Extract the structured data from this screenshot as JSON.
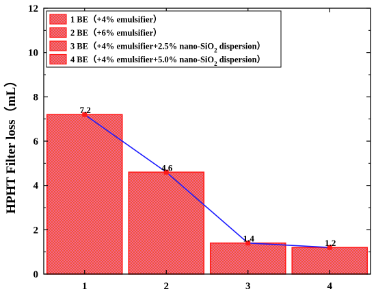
{
  "chart_data": {
    "type": "bar",
    "categories": [
      "1",
      "2",
      "3",
      "4"
    ],
    "values": [
      7.2,
      4.6,
      1.4,
      1.2
    ],
    "value_labels": [
      "7.2",
      "4.6",
      "1.4",
      "1.2"
    ],
    "ylabel": "HPHT Filter loss（mL）",
    "ylim": [
      0,
      12
    ],
    "yticks": [
      "0",
      "2",
      "4",
      "6",
      "8",
      "10",
      "12"
    ],
    "grid": false,
    "overlay_line": true,
    "legend_position": "top-left",
    "legend": [
      {
        "prefix": "1 BE（+4% emulsifier）",
        "sub": "",
        "suffix": ""
      },
      {
        "prefix": "2 BE（+6% emulsifier）",
        "sub": "",
        "suffix": ""
      },
      {
        "prefix": "3 BE（+4% emulsifier+2.5% nano-SiO",
        "sub": "2",
        "suffix": " dispersion）"
      },
      {
        "prefix": "4 BE（+4% emulsifier+5.0% nano-SiO",
        "sub": "2",
        "suffix": " dispersion）"
      }
    ],
    "colors": {
      "bar_fill": "#f06aa8",
      "bar_hatch": "#f4511e",
      "bar_edge": "#ff1a1a",
      "line": "#1a1aff",
      "marker": "#ff1a1a"
    }
  }
}
